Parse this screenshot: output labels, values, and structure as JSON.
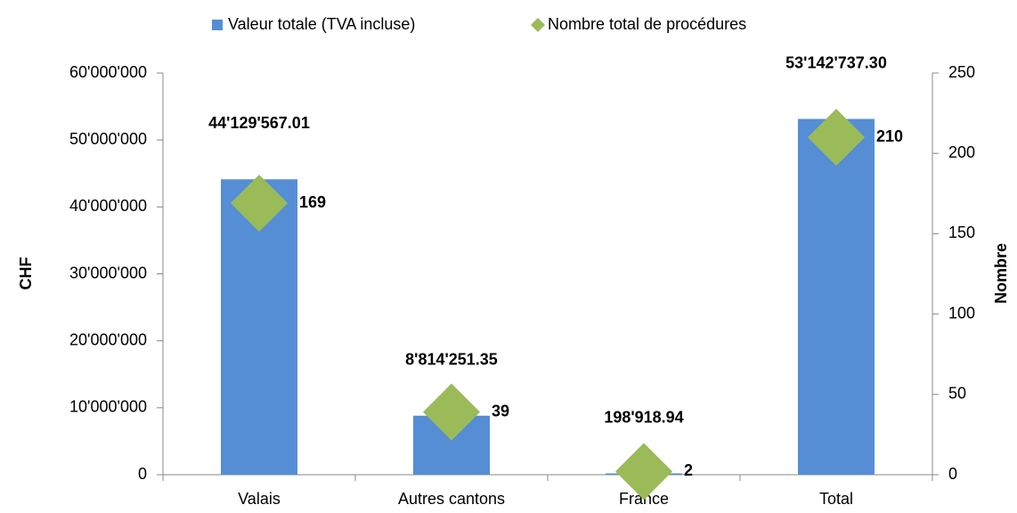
{
  "chart_data": {
    "type": "bar",
    "categories": [
      "Valais",
      "Autres cantons",
      "France",
      "Total"
    ],
    "series": [
      {
        "name": "Valeur totale (TVA incluse)",
        "type": "bar",
        "color": "#558ed5",
        "values": [
          44129567.01,
          8814251.35,
          198918.94,
          53142737.3
        ],
        "value_labels": [
          "44'129'567.01",
          "8'814'251.35",
          "198'918.94",
          "53'142'737.30"
        ]
      },
      {
        "name": "Nombre total de procédures",
        "type": "scatter",
        "axis": "y2",
        "color": "#9bbb59",
        "values": [
          169,
          39,
          2,
          210
        ]
      }
    ],
    "ylabel": "CHF",
    "y2label": "Nombre",
    "ylim": [
      0,
      60000000
    ],
    "yticks": [
      0,
      {
        "value": 10000000,
        "label": "10'000'000"
      },
      {
        "value": 20000000,
        "label": "20'000'000"
      },
      {
        "value": 30000000,
        "label": "30'000'000"
      },
      {
        "value": 40000000,
        "label": "40'000'000"
      },
      {
        "value": 50000000,
        "label": "50'000'000"
      },
      {
        "value": 60000000,
        "label": "60'000'000"
      }
    ],
    "y2lim": [
      0,
      250
    ],
    "y2ticks": [
      0,
      50,
      100,
      150,
      200,
      250
    ],
    "legend": "top",
    "grid": false
  }
}
